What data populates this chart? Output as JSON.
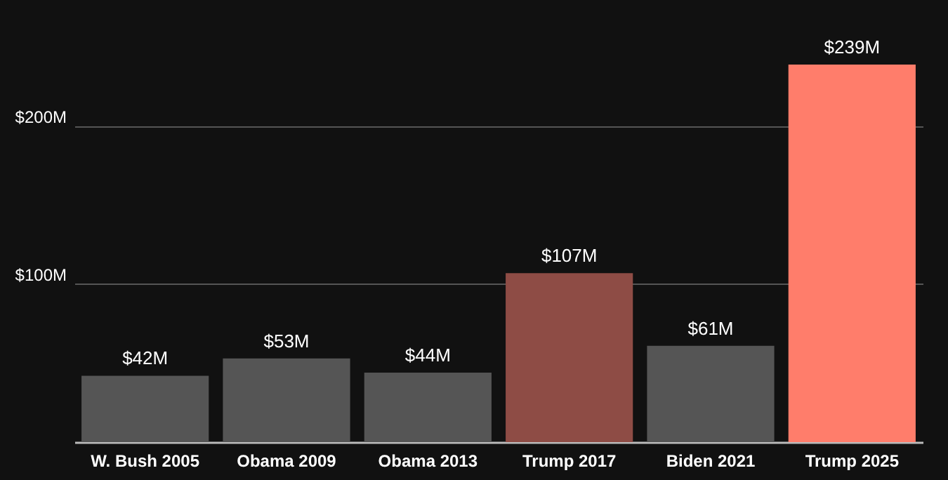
{
  "chart_data": {
    "type": "bar",
    "categories": [
      "W. Bush 2005",
      "Obama 2009",
      "Obama 2013",
      "Trump 2017",
      "Biden 2021",
      "Trump 2025"
    ],
    "values": [
      42,
      53,
      44,
      107,
      61,
      239
    ],
    "colors": [
      "#555555",
      "#555555",
      "#555555",
      "#8e4c45",
      "#555555",
      "#ff7d6b"
    ],
    "value_labels": [
      "$42M",
      "$53M",
      "$44M",
      "$107M",
      "$61M",
      "$239M"
    ],
    "ylim": [
      0,
      239
    ],
    "yticks": [
      {
        "value": 100,
        "label": "$100M"
      },
      {
        "value": 200,
        "label": "$200M"
      }
    ],
    "grid": "y"
  }
}
